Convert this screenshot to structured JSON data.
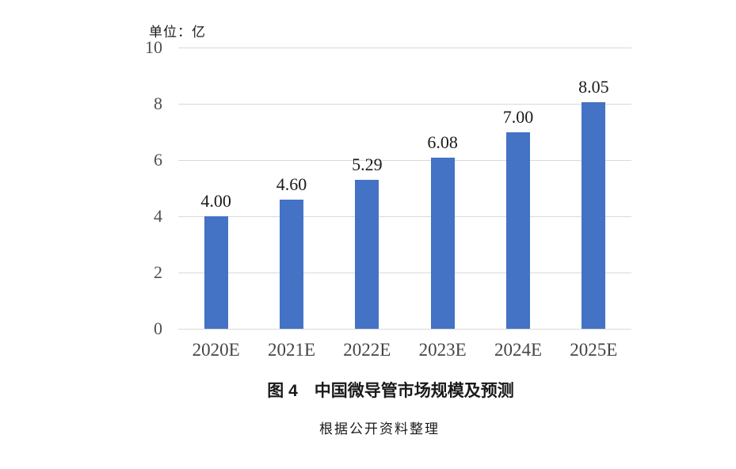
{
  "unit_label": "单位：亿",
  "chart_data": {
    "type": "bar",
    "categories": [
      "2020E",
      "2021E",
      "2022E",
      "2023E",
      "2024E",
      "2025E"
    ],
    "values": [
      4.0,
      4.6,
      5.29,
      6.08,
      7.0,
      8.05
    ],
    "data_labels": [
      "4.00",
      "4.60",
      "5.29",
      "6.08",
      "7.00",
      "8.05"
    ],
    "title": "图 4　中国微导管市场规模及预测",
    "unit": "亿",
    "xlabel": "",
    "ylabel": "",
    "ylim": [
      0,
      10
    ],
    "yticks": [
      0,
      2,
      4,
      6,
      8,
      10
    ],
    "ytick_labels": [
      "0",
      "2",
      "4",
      "6",
      "8",
      "10"
    ],
    "grid": true,
    "legend_position": "none",
    "bar_color": "#4472C4",
    "gridline_color": "#D9D9D9"
  },
  "caption": {
    "title": "图 4　中国微导管市场规模及预测",
    "source": "根据公开资料整理"
  }
}
